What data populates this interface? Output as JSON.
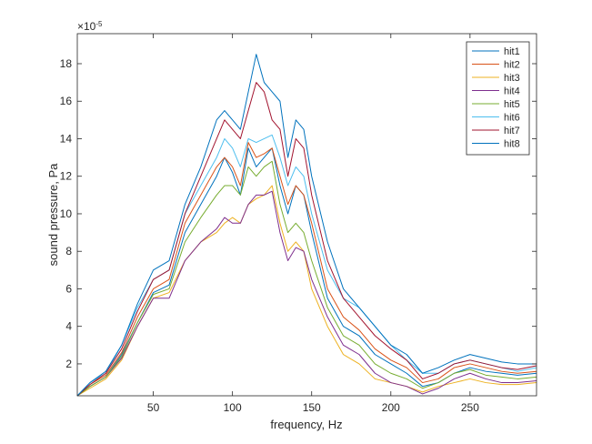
{
  "chart_data": {
    "type": "line",
    "xlabel": "frequency, Hz",
    "ylabel": "sound pressure, Pa",
    "y_exponent_label": "×10",
    "y_exponent_power": "-5",
    "xlim": [
      2,
      292
    ],
    "ylim": [
      0.3,
      19.6
    ],
    "x_ticks": [
      50,
      100,
      150,
      200,
      250
    ],
    "y_ticks": [
      2,
      4,
      6,
      8,
      10,
      12,
      14,
      16,
      18
    ],
    "x_tick_labels": [
      "50",
      "100",
      "150",
      "200",
      "250"
    ],
    "y_tick_labels": [
      "2",
      "4",
      "6",
      "8",
      "10",
      "12",
      "14",
      "16",
      "18"
    ],
    "grid": false,
    "legend_position": "top-right",
    "colors": [
      "#0072BD",
      "#D95319",
      "#EDB120",
      "#7E2F8E",
      "#77AC30",
      "#4DBEEE",
      "#A2142F",
      "#0072BD"
    ],
    "series": [
      {
        "name": "hit1",
        "x": [
          2,
          10,
          20,
          30,
          40,
          50,
          60,
          70,
          80,
          90,
          95,
          100,
          105,
          110,
          115,
          120,
          125,
          130,
          135,
          140,
          145,
          150,
          160,
          170,
          180,
          190,
          200,
          210,
          220,
          230,
          240,
          250,
          260,
          270,
          280,
          292
        ],
        "y": [
          0.3,
          0.8,
          1.3,
          2.5,
          4.2,
          5.8,
          6.2,
          9.0,
          10.5,
          12.0,
          13.0,
          12.2,
          11.0,
          13.5,
          12.5,
          13.0,
          13.5,
          11.5,
          10.0,
          11.5,
          11.0,
          9.0,
          5.5,
          4.0,
          3.5,
          2.5,
          2.0,
          1.5,
          0.8,
          1.0,
          1.5,
          1.8,
          1.6,
          1.5,
          1.4,
          1.5
        ]
      },
      {
        "name": "hit2",
        "x": [
          2,
          10,
          20,
          30,
          40,
          50,
          60,
          70,
          80,
          90,
          95,
          100,
          105,
          110,
          115,
          120,
          125,
          130,
          135,
          140,
          145,
          150,
          160,
          170,
          180,
          190,
          200,
          210,
          220,
          230,
          240,
          250,
          260,
          270,
          280,
          292
        ],
        "y": [
          0.3,
          0.9,
          1.4,
          2.6,
          4.5,
          6.0,
          6.5,
          9.5,
          11.0,
          12.5,
          13.0,
          12.5,
          11.5,
          13.8,
          13.0,
          13.2,
          13.5,
          12.0,
          10.5,
          11.5,
          11.0,
          9.5,
          6.0,
          4.5,
          3.8,
          2.8,
          2.2,
          1.8,
          1.0,
          1.2,
          1.8,
          2.0,
          1.8,
          1.6,
          1.5,
          1.6
        ]
      },
      {
        "name": "hit3",
        "x": [
          2,
          10,
          20,
          30,
          40,
          50,
          60,
          70,
          80,
          90,
          95,
          100,
          105,
          110,
          115,
          120,
          125,
          130,
          135,
          140,
          145,
          150,
          160,
          170,
          180,
          190,
          200,
          210,
          220,
          230,
          240,
          250,
          260,
          270,
          280,
          292
        ],
        "y": [
          0.3,
          0.7,
          1.2,
          2.2,
          4.0,
          5.5,
          5.8,
          7.5,
          8.5,
          9.0,
          9.5,
          9.8,
          9.5,
          10.5,
          10.8,
          11.0,
          11.5,
          9.5,
          8.0,
          8.5,
          8.0,
          6.0,
          4.0,
          2.5,
          2.0,
          1.2,
          1.0,
          0.8,
          0.5,
          0.8,
          1.0,
          1.2,
          1.0,
          0.9,
          0.9,
          1.0
        ]
      },
      {
        "name": "hit4",
        "x": [
          2,
          10,
          20,
          30,
          40,
          50,
          60,
          70,
          80,
          90,
          95,
          100,
          105,
          110,
          115,
          120,
          125,
          130,
          135,
          140,
          145,
          150,
          160,
          170,
          180,
          190,
          200,
          210,
          220,
          230,
          240,
          250,
          260,
          270,
          280,
          292
        ],
        "y": [
          0.3,
          0.8,
          1.3,
          2.3,
          4.0,
          5.5,
          5.5,
          7.5,
          8.5,
          9.2,
          9.8,
          9.5,
          9.5,
          10.5,
          11.0,
          11.0,
          11.2,
          9.0,
          7.5,
          8.2,
          8.0,
          6.5,
          4.5,
          3.0,
          2.5,
          1.5,
          1.0,
          0.8,
          0.4,
          0.7,
          1.2,
          1.5,
          1.2,
          1.0,
          1.0,
          1.1
        ]
      },
      {
        "name": "hit5",
        "x": [
          2,
          10,
          20,
          30,
          40,
          50,
          60,
          70,
          80,
          90,
          95,
          100,
          105,
          110,
          115,
          120,
          125,
          130,
          135,
          140,
          145,
          150,
          160,
          170,
          180,
          190,
          200,
          210,
          220,
          230,
          240,
          250,
          260,
          270,
          280,
          292
        ],
        "y": [
          0.3,
          0.8,
          1.3,
          2.4,
          4.2,
          5.7,
          6.0,
          8.5,
          9.8,
          11.0,
          11.5,
          11.5,
          11.0,
          12.5,
          12.0,
          12.5,
          12.8,
          10.5,
          9.0,
          9.5,
          9.0,
          7.5,
          5.0,
          3.5,
          3.0,
          2.0,
          1.5,
          1.2,
          0.7,
          1.0,
          1.5,
          1.7,
          1.4,
          1.3,
          1.2,
          1.3
        ]
      },
      {
        "name": "hit6",
        "x": [
          2,
          10,
          20,
          30,
          40,
          50,
          60,
          70,
          80,
          90,
          95,
          100,
          105,
          110,
          115,
          120,
          125,
          130,
          135,
          140,
          145,
          150,
          160,
          170,
          180,
          190,
          200,
          210,
          220,
          230,
          240,
          250,
          260,
          270,
          280,
          292
        ],
        "y": [
          0.3,
          1.0,
          1.5,
          3.0,
          5.0,
          6.5,
          7.0,
          10.0,
          11.5,
          13.0,
          14.0,
          13.5,
          12.5,
          14.0,
          13.8,
          14.0,
          14.2,
          13.0,
          11.5,
          12.5,
          12.0,
          10.0,
          7.0,
          5.5,
          5.0,
          4.0,
          3.0,
          2.2,
          1.5,
          1.5,
          2.0,
          2.2,
          2.0,
          1.8,
          1.6,
          1.8
        ]
      },
      {
        "name": "hit7",
        "x": [
          2,
          10,
          20,
          30,
          40,
          50,
          60,
          70,
          80,
          90,
          95,
          100,
          105,
          110,
          115,
          120,
          125,
          130,
          135,
          140,
          145,
          150,
          160,
          170,
          180,
          190,
          200,
          210,
          220,
          230,
          240,
          250,
          260,
          270,
          280,
          292
        ],
        "y": [
          0.3,
          0.9,
          1.5,
          2.8,
          4.8,
          6.5,
          7.0,
          10.0,
          12.0,
          14.0,
          15.0,
          14.5,
          14.0,
          15.5,
          17.0,
          16.5,
          15.0,
          14.5,
          12.0,
          14.0,
          13.5,
          11.0,
          7.5,
          5.5,
          4.5,
          3.5,
          2.8,
          2.2,
          1.2,
          1.5,
          2.0,
          2.2,
          2.0,
          1.8,
          1.7,
          1.9
        ]
      },
      {
        "name": "hit8",
        "x": [
          2,
          10,
          20,
          30,
          40,
          50,
          60,
          70,
          80,
          90,
          95,
          100,
          105,
          110,
          115,
          120,
          125,
          130,
          135,
          140,
          145,
          150,
          160,
          170,
          180,
          190,
          200,
          210,
          220,
          230,
          240,
          250,
          260,
          270,
          280,
          292
        ],
        "y": [
          0.3,
          1.0,
          1.6,
          3.0,
          5.2,
          7.0,
          7.5,
          10.5,
          12.5,
          15.0,
          15.5,
          15.0,
          14.5,
          16.5,
          18.5,
          17.0,
          16.5,
          16.0,
          13.0,
          15.0,
          14.5,
          12.0,
          8.5,
          6.0,
          5.0,
          4.0,
          3.0,
          2.5,
          1.5,
          1.8,
          2.2,
          2.5,
          2.3,
          2.1,
          2.0,
          2.0
        ]
      }
    ]
  }
}
